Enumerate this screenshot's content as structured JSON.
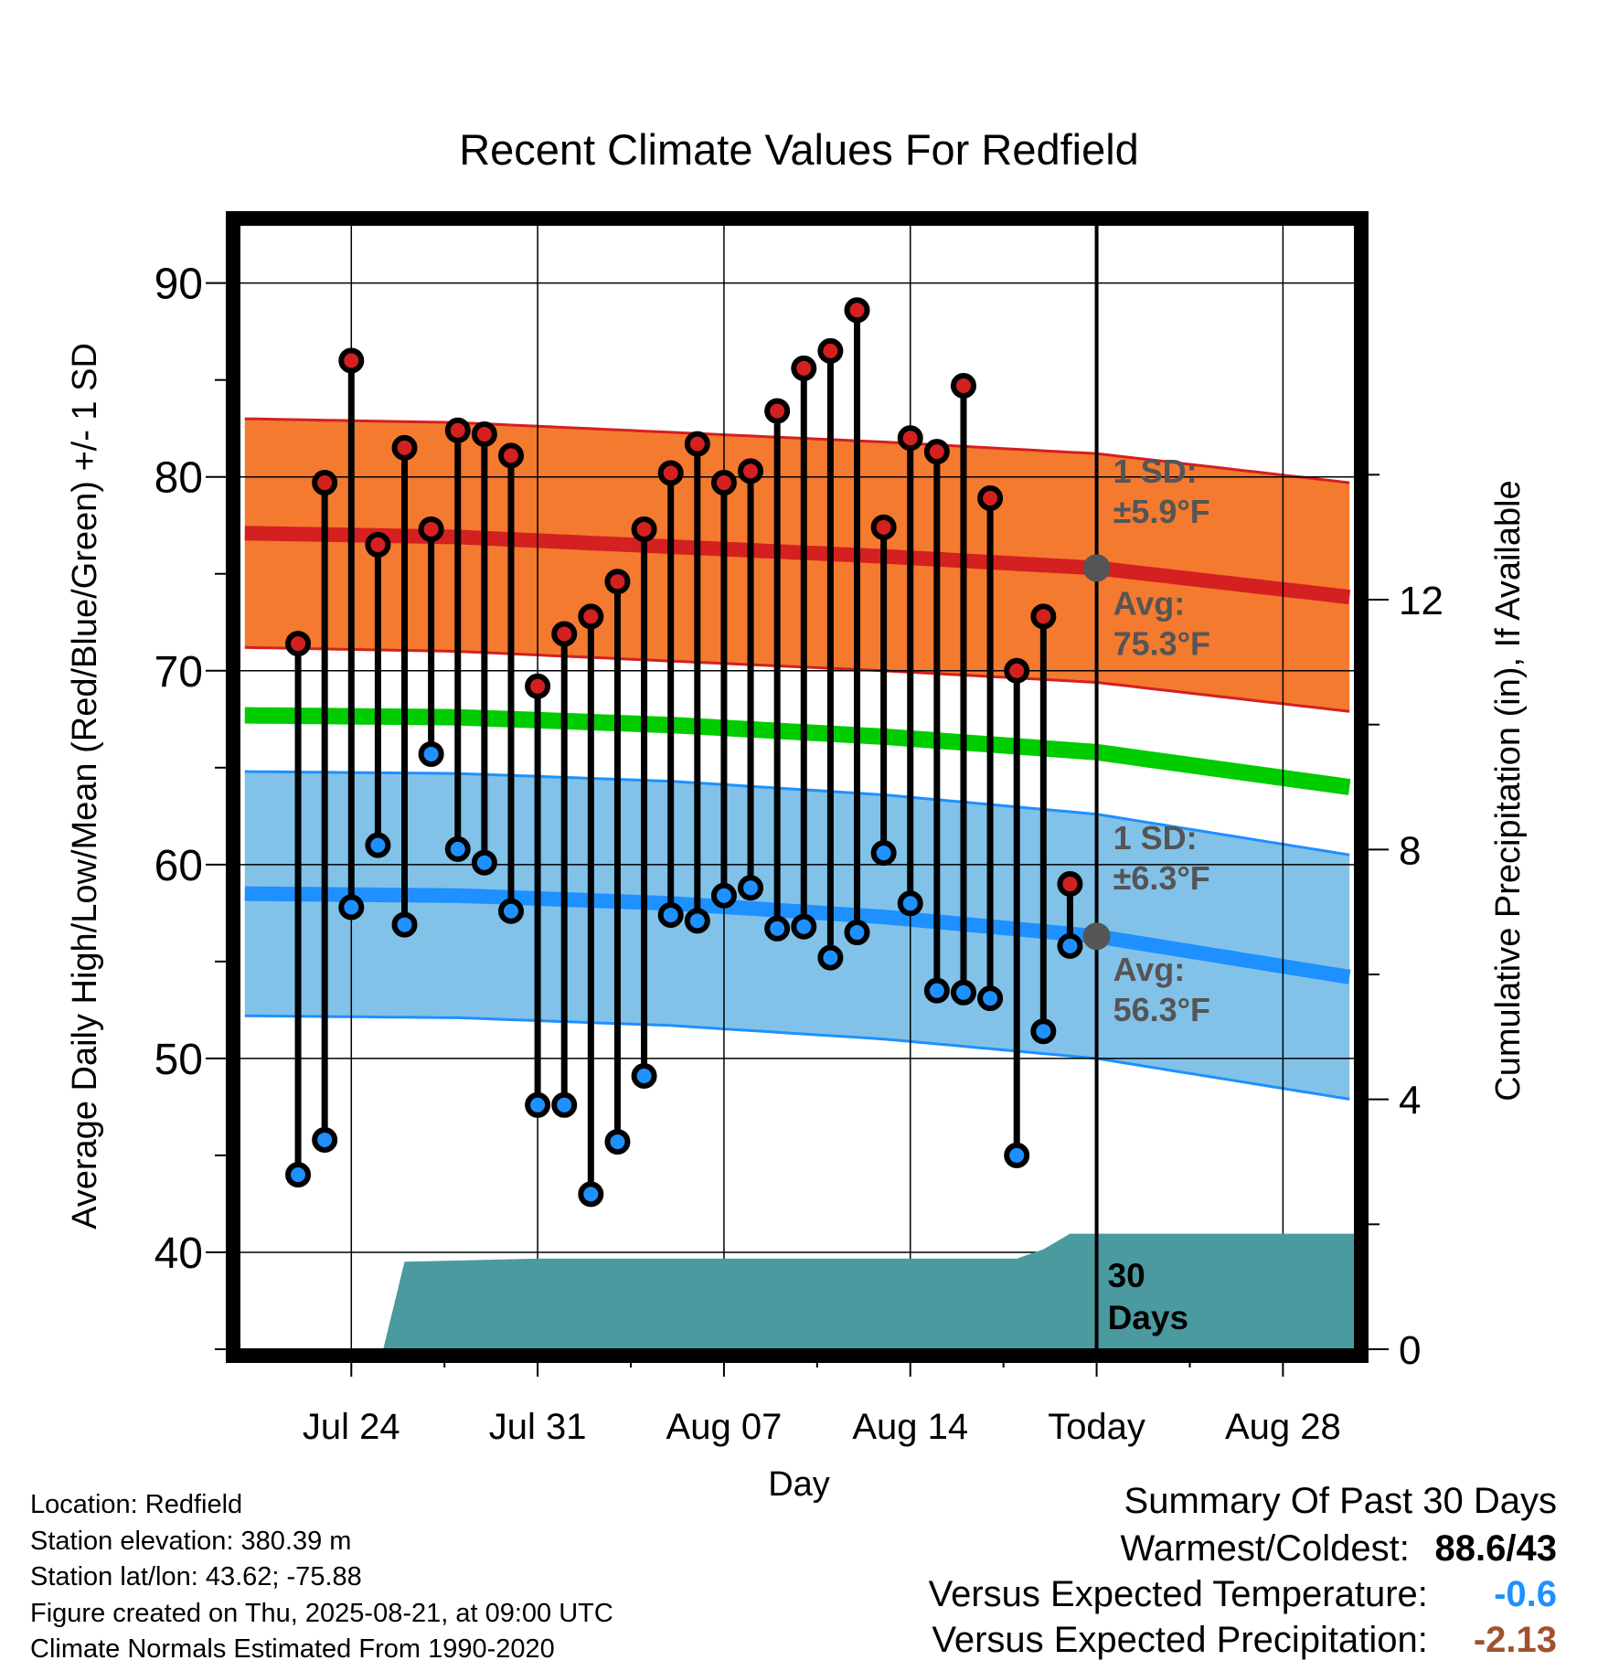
{
  "chart_data": {
    "type": "line",
    "title": "Recent Climate Values For Redfield",
    "xlabel": "Day",
    "ylabel": "Average Daily High/Low/Mean (Red/Blue/Green) +/- 1 SD",
    "y2label": "Cumulative Precipitation (in), If Available",
    "ylim": [
      35,
      93
    ],
    "y2lim": [
      0,
      18
    ],
    "yticks": [
      40,
      50,
      60,
      70,
      80,
      90
    ],
    "y2ticks": [
      0,
      4,
      8,
      12
    ],
    "xtick_labels": [
      "Jul 24",
      "Jul 31",
      "Aug 07",
      "Aug 14",
      "Today",
      "Aug 28"
    ],
    "x_range_days": [
      -32.2,
      9.7
    ],
    "xtick_days": [
      -28,
      -21,
      -14,
      -7,
      0,
      7
    ],
    "today_label": "30 Days",
    "grid": true,
    "observed": {
      "days": [
        -30,
        -29,
        -28,
        -27,
        -26,
        -25,
        -24,
        -23,
        -22,
        -21,
        -20,
        -19,
        -18,
        -17,
        -16,
        -15,
        -14,
        -13,
        -12,
        -11,
        -10,
        -9,
        -8,
        -7,
        -6,
        -5,
        -4,
        -3,
        -2,
        -1
      ],
      "high": [
        71.4,
        79.7,
        86.0,
        76.5,
        81.5,
        77.3,
        82.4,
        82.2,
        81.1,
        69.2,
        71.9,
        72.8,
        74.6,
        77.3,
        80.2,
        81.7,
        79.7,
        80.3,
        83.4,
        85.6,
        86.5,
        88.6,
        77.4,
        82.0,
        81.3,
        84.7,
        78.9,
        70.0,
        72.8,
        59.0
      ],
      "low": [
        44.0,
        45.8,
        57.8,
        61.0,
        56.9,
        65.7,
        60.8,
        60.1,
        57.6,
        47.6,
        47.6,
        43.0,
        45.7,
        49.1,
        57.4,
        57.1,
        58.4,
        58.8,
        56.7,
        56.8,
        55.2,
        56.5,
        60.6,
        58.0,
        53.5,
        53.4,
        53.1,
        45.0,
        51.4,
        55.8
      ]
    },
    "normal_high": {
      "days": [
        -32,
        -24,
        -16,
        -8,
        0,
        9.5
      ],
      "mean": [
        77.1,
        76.9,
        76.4,
        75.9,
        75.3,
        73.8
      ],
      "sd": 5.9
    },
    "normal_low": {
      "days": [
        -32,
        -24,
        -16,
        -8,
        0,
        9.5
      ],
      "mean": [
        58.5,
        58.4,
        58.0,
        57.3,
        56.3,
        54.2
      ],
      "sd": 6.3
    },
    "normal_mean": {
      "days": [
        -32,
        -24,
        -16,
        -8,
        0,
        9.5
      ],
      "values": [
        67.7,
        67.6,
        67.2,
        66.6,
        65.8,
        64.0
      ]
    },
    "precip_cumulative": {
      "days": [
        -32.2,
        -26.8,
        -26.0,
        -21.0,
        -3.0,
        -2.0,
        -1.0,
        0.0,
        9.7
      ],
      "values": [
        0,
        0,
        1.4,
        1.45,
        1.45,
        1.6,
        1.85,
        1.85,
        1.85
      ]
    },
    "annotations": {
      "high_sd": [
        "1 SD:",
        "±5.9°F"
      ],
      "high_avg": [
        "Avg:",
        "75.3°F"
      ],
      "low_sd": [
        "1 SD:",
        "±6.3°F"
      ],
      "low_avg": [
        "Avg:",
        "56.3°F"
      ]
    },
    "colors": {
      "high_band": "#f47a30",
      "high_line": "#d42020",
      "low_band": "#82c2e8",
      "low_line": "#1e90ff",
      "mean_line": "#00cc00",
      "precip": "#4a9aa0",
      "high_marker": "#d42020",
      "low_marker": "#1e90ff",
      "annotation": "#555555"
    }
  },
  "info": {
    "location": "Location: Redfield",
    "elevation": "Station elevation: 380.39 m",
    "latlon": "Station lat/lon: 43.62; -75.88",
    "created": "Figure created on Thu, 2025-08-21, at 09:00 UTC",
    "normals": "Climate Normals Estimated From 1990-2020"
  },
  "summary": {
    "title": "Summary Of Past 30 Days",
    "warm_cold_label": "Warmest/Coldest:",
    "warm_cold_value": "88.6/43",
    "temp_label": "Versus Expected Temperature:",
    "temp_value": "-0.6",
    "temp_color": "#1e90ff",
    "precip_label": "Versus Expected Precipitation:",
    "precip_value": "-2.13",
    "precip_color": "#a0522d"
  }
}
